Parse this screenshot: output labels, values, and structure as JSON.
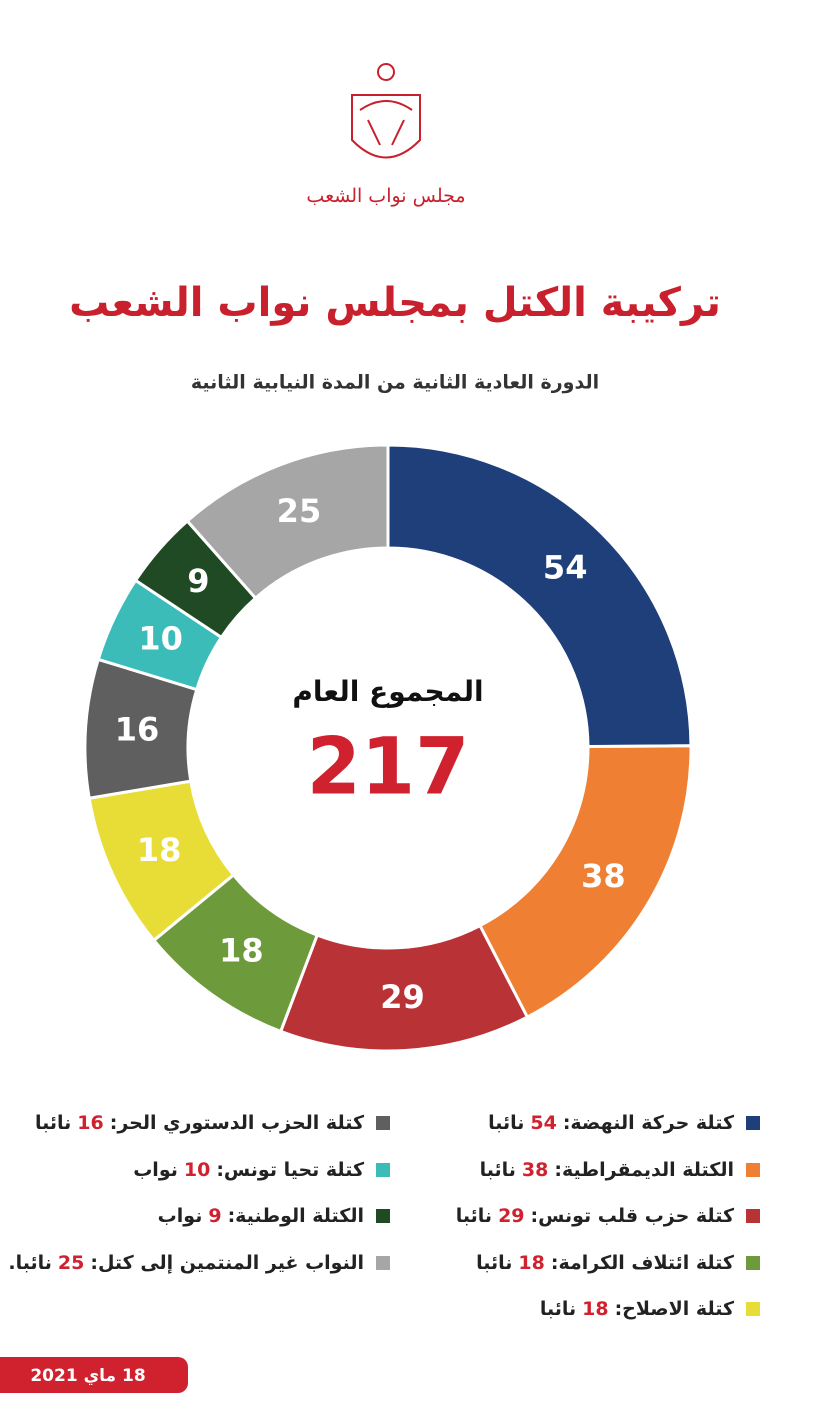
{
  "header": {
    "logo_text": "مجلس نواب الشعب"
  },
  "chart_data": {
    "type": "donut",
    "title": "تركيبة الكتل بمجلس نواب الشعب",
    "subtitle": "الدورة العادية الثانية من المدة النيابية الثانية",
    "center_label": "المجموع العام",
    "total": 217,
    "categories": [
      "كتلة حركة النهضة:",
      "الكتلة الديمقراطية:",
      "كتلة حزب قلب تونس:",
      "كتلة ائتلاف الكرامة:",
      "كتلة الاصلاح:",
      "كتلة الحزب الدستوري الحر:",
      "كتلة تحيا تونس:",
      "الكتلة الوطنية:",
      "النواب غير المنتمين إلى كتل:"
    ],
    "values": [
      54,
      38,
      29,
      18,
      18,
      16,
      10,
      9,
      25
    ],
    "colors": [
      "#1f3f7a",
      "#ee7f33",
      "#b83236",
      "#6d9a3b",
      "#e8dd36",
      "#5f5f5f",
      "#3bbcb8",
      "#1f4a23",
      "#a6a6a6"
    ],
    "legend_units": [
      "نائبا",
      "نائبا",
      "نائبا",
      "نائبا",
      "نائبا",
      "نائبا",
      "نواب",
      "نواب",
      "نائبا."
    ]
  },
  "footer": {
    "date": "18 ماي 2021"
  }
}
